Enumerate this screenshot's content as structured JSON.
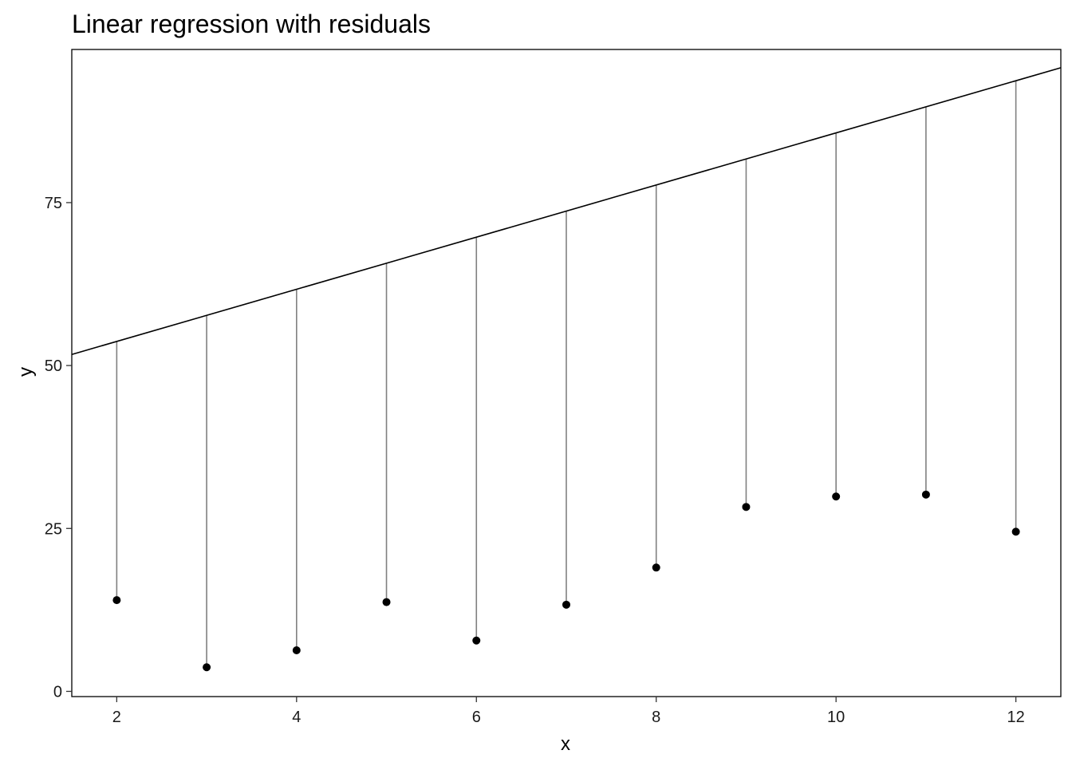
{
  "chart_data": {
    "type": "scatter",
    "title": "Linear regression with residuals",
    "xlabel": "x",
    "ylabel": "y",
    "xlim": [
      1.5,
      12.5
    ],
    "ylim": [
      -0.8,
      98.5
    ],
    "x_ticks": [
      2,
      4,
      6,
      8,
      10,
      12
    ],
    "y_ticks": [
      0,
      25,
      50,
      75
    ],
    "grid": false,
    "legend": "none",
    "x": [
      2,
      3,
      4,
      5,
      6,
      7,
      8,
      9,
      10,
      11,
      12
    ],
    "y": [
      14.0,
      3.7,
      6.3,
      13.7,
      7.8,
      13.3,
      19.0,
      28.3,
      29.9,
      30.2,
      24.5
    ],
    "fitted_line": {
      "intercept": 45.7,
      "slope": 4.0
    },
    "colors": {
      "points": "#000000",
      "fit_line": "#000000",
      "residuals": "#808080",
      "frame": "#000000"
    }
  }
}
